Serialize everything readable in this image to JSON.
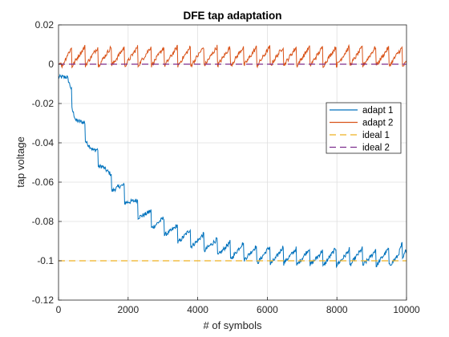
{
  "chart_data": {
    "type": "line",
    "title": "DFE tap adaptation",
    "xlabel": "# of symbols",
    "ylabel": "tap voltage",
    "xlim": [
      0,
      10000
    ],
    "ylim": [
      -0.12,
      0.02
    ],
    "x_ticks": [
      0,
      2000,
      4000,
      6000,
      8000,
      10000
    ],
    "x_tick_labels": [
      "0",
      "2000",
      "4000",
      "6000",
      "8000",
      "10000"
    ],
    "y_ticks": [
      0.02,
      0,
      -0.02,
      -0.04,
      -0.06,
      -0.08,
      -0.1,
      -0.12
    ],
    "y_tick_labels": [
      "0.02",
      "0",
      "-0.02",
      "-0.04",
      "-0.06",
      "-0.08",
      "-0.1",
      "-0.12"
    ],
    "grid": true,
    "legend_position": "right",
    "x": [
      0,
      250,
      500,
      750,
      1000,
      1250,
      1500,
      1750,
      2000,
      2250,
      2500,
      2750,
      3000,
      3250,
      3500,
      3750,
      4000,
      4250,
      4500,
      4750,
      5000,
      5250,
      5500,
      5750,
      6000,
      6250,
      6500,
      6750,
      7000,
      7250,
      7500,
      7750,
      8000,
      8250,
      8500,
      8750,
      9000,
      9250,
      9500,
      9750,
      10000
    ],
    "series": [
      {
        "name": "adapt 1",
        "color": "#0072BD",
        "style": "solid",
        "values": [
          -0.002,
          -0.008,
          -0.027,
          -0.034,
          -0.045,
          -0.05,
          -0.06,
          -0.063,
          -0.068,
          -0.073,
          -0.077,
          -0.08,
          -0.082,
          -0.085,
          -0.087,
          -0.088,
          -0.09,
          -0.091,
          -0.093,
          -0.094,
          -0.095,
          -0.095,
          -0.096,
          -0.097,
          -0.097,
          -0.098,
          -0.097,
          -0.098,
          -0.098,
          -0.098,
          -0.099,
          -0.098,
          -0.098,
          -0.099,
          -0.098,
          -0.098,
          -0.099,
          -0.098,
          -0.098,
          -0.099,
          -0.092
        ]
      },
      {
        "name": "adapt 2",
        "color": "#D95319",
        "style": "solid",
        "values": [
          0.0,
          0.003,
          0.004,
          0.004,
          0.004,
          0.004,
          0.004,
          0.004,
          0.004,
          0.004,
          0.004,
          0.004,
          0.004,
          0.004,
          0.004,
          0.004,
          0.004,
          0.004,
          0.004,
          0.004,
          0.004,
          0.004,
          0.004,
          0.004,
          0.004,
          0.004,
          0.004,
          0.004,
          0.004,
          0.004,
          0.004,
          0.004,
          0.004,
          0.004,
          0.004,
          0.004,
          0.004,
          0.004,
          0.004,
          0.004,
          0.003
        ]
      },
      {
        "name": "ideal 1",
        "color": "#EDB120",
        "style": "dashed",
        "values": [
          -0.1,
          -0.1,
          -0.1,
          -0.1,
          -0.1,
          -0.1,
          -0.1,
          -0.1,
          -0.1,
          -0.1,
          -0.1,
          -0.1,
          -0.1,
          -0.1,
          -0.1,
          -0.1,
          -0.1,
          -0.1,
          -0.1,
          -0.1,
          -0.1,
          -0.1,
          -0.1,
          -0.1,
          -0.1,
          -0.1,
          -0.1,
          -0.1,
          -0.1,
          -0.1,
          -0.1,
          -0.1,
          -0.1,
          -0.1,
          -0.1,
          -0.1,
          -0.1,
          -0.1,
          -0.1,
          -0.1,
          -0.1
        ]
      },
      {
        "name": "ideal 2",
        "color": "#7E2F8E",
        "style": "dashed",
        "values": [
          0,
          0,
          0,
          0,
          0,
          0,
          0,
          0,
          0,
          0,
          0,
          0,
          0,
          0,
          0,
          0,
          0,
          0,
          0,
          0,
          0,
          0,
          0,
          0,
          0,
          0,
          0,
          0,
          0,
          0,
          0,
          0,
          0,
          0,
          0,
          0,
          0,
          0,
          0,
          0,
          0
        ]
      }
    ]
  }
}
